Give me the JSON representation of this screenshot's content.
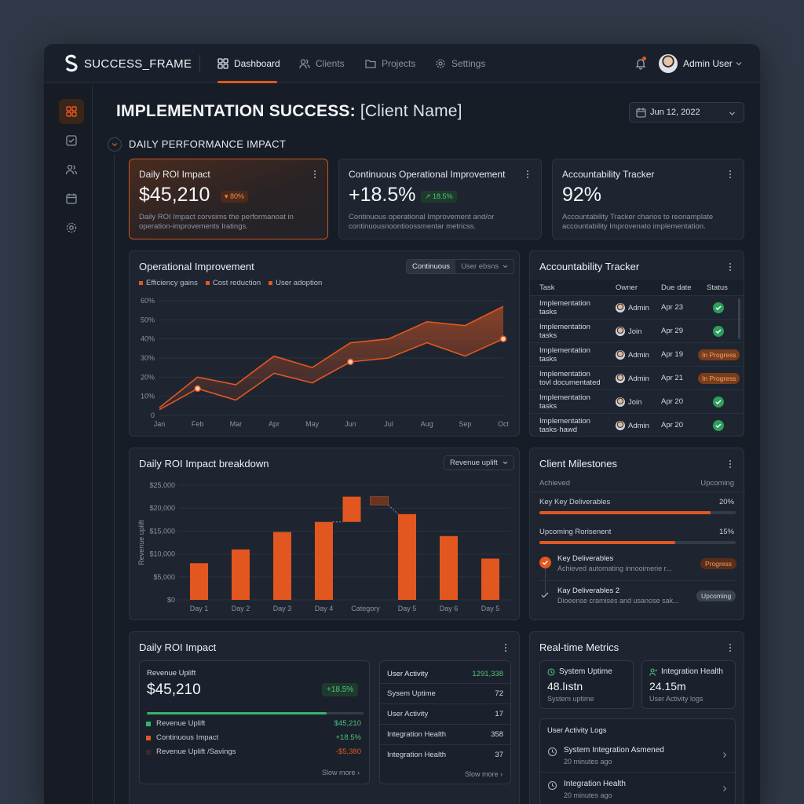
{
  "app": {
    "name": "SUCCESS_FRAME"
  },
  "nav": {
    "dashboard": "Dashboard",
    "clients": "Clients",
    "projects": "Projects",
    "settings": "Settings"
  },
  "user": {
    "name": "Admin User"
  },
  "page": {
    "title_bold": "IMPLEMENTATION SUCCESS:",
    "title_rest": "[Client Name]",
    "date": "Jun 12, 2022"
  },
  "section": {
    "title": "DAILY PERFORMANCE IMPACT"
  },
  "kpis": [
    {
      "label": "Daily ROI Impact",
      "value": "$45,210",
      "badge": "▾ 80%",
      "desc": "Daily ROI Impact corvsims the performanoat in operation-improvements Iratings."
    },
    {
      "label": "Continuous Operational Improvement",
      "value": "+18.5%",
      "badge": "↗ 18.5%",
      "desc": "Continuous operational Improvement and/or continuousnoontioossmentar metricss."
    },
    {
      "label": "Accountability Tracker",
      "value": "92%",
      "desc": "Accountability Tracker charios to reonamplate accountability Improvenato implementation."
    }
  ],
  "op_chart": {
    "title": "Operational Improvement",
    "toggle": [
      "Continuous",
      "User ebsns"
    ],
    "legend": [
      "Efficiency gains",
      "Cost reduction",
      "User adoption"
    ],
    "chart_data": {
      "type": "area",
      "categories": [
        "Jan",
        "Feb",
        "Mar",
        "Apr",
        "May",
        "Jun",
        "Jul",
        "Aug",
        "Sep",
        "Oct"
      ],
      "y_ticks": [
        "60%",
        "50%",
        "40%",
        "30%",
        "20%",
        "10%",
        "0"
      ],
      "ylim": [
        0,
        60
      ],
      "series": [
        {
          "name": "Efficiency gains",
          "values": [
            4,
            20,
            16,
            31,
            25,
            38,
            40,
            49,
            47,
            57
          ]
        },
        {
          "name": "Cost reduction",
          "values": [
            3,
            14,
            8,
            22,
            17,
            28,
            30,
            38,
            31,
            40
          ]
        }
      ]
    }
  },
  "tracker": {
    "title": "Accountability Tracker",
    "headers": [
      "Task",
      "Owner",
      "Due date",
      "Status"
    ],
    "rows": [
      {
        "task": "Implementation tasks",
        "owner": "Admin",
        "due": "Apr 23",
        "status": "done"
      },
      {
        "task": "Implementation tasks",
        "owner": "Join",
        "due": "Apr 29",
        "status": "done"
      },
      {
        "task": "Implementation tasks",
        "owner": "Admin",
        "due": "Apr 19",
        "status": "In Progress"
      },
      {
        "task": "Implementation tovl documentated",
        "owner": "Admin",
        "due": "Apr 21",
        "status": "In Progress"
      },
      {
        "task": "Implementation tasks",
        "owner": "Join",
        "due": "Apr 20",
        "status": "done"
      },
      {
        "task": "Implementation tasks·hawd",
        "owner": "Admin",
        "due": "Apr 20",
        "status": "done"
      }
    ]
  },
  "roi_chart": {
    "title": "Daily ROI Impact breakdown",
    "dropdown": "Revenue uplift",
    "ylabel": "Revenue uplift",
    "chart_data": {
      "type": "bar",
      "categories": [
        "Day 1",
        "Day 2",
        "Day 3",
        "Day 4",
        "Category",
        "Day 5",
        "Day 6",
        "Day 5"
      ],
      "values": [
        8000,
        11000,
        14800,
        17000,
        null,
        18700,
        13900,
        9000
      ],
      "floating": [
        {
          "category": "Category",
          "segments": [
            [
              17000,
              22500
            ],
            [
              18700,
              22500
            ]
          ]
        }
      ],
      "y_ticks": [
        "$25,000",
        "$20,000",
        "$15,000",
        "$10,000",
        "$5,000",
        "$0"
      ],
      "ylim": [
        0,
        25000
      ]
    }
  },
  "milestones": {
    "title": "Client Milestones",
    "achieved": "Achieved",
    "upcoming": "Upcoming",
    "bars": [
      {
        "label": "Key Key Deliverables",
        "pct": "20%",
        "fill": 0.87
      },
      {
        "label": "Upcoming Rorisenent",
        "pct": "15%",
        "fill": 0.69
      }
    ],
    "items": [
      {
        "title": "Key Deliverables",
        "sub": "Achieved automating innooimerie r...",
        "tag": "Progress"
      },
      {
        "title": "Kay Deliverables 2",
        "sub": "Dioeense cramises and usanose sak...",
        "tag": "Upcoming"
      }
    ]
  },
  "roi_panel": {
    "title": "Daily ROI Impact",
    "rev_label": "Revenue Uplift",
    "rev_value": "$45,210",
    "rev_badge": "+18.5%",
    "progress": 0.83,
    "lines": [
      {
        "label": "Revenue Uplift",
        "value": "$45,210",
        "color": "#37b36b"
      },
      {
        "label": "Continuous Impact",
        "value": "+18.5%",
        "color": "#e2571f"
      },
      {
        "label": "Revenue Uplift /Savings",
        "value": "-$5,380",
        "color": "#3a2b27"
      }
    ],
    "more": "Slow more",
    "activity": {
      "title": "User Activity",
      "title_value": "1291,338",
      "rows": [
        {
          "k": "Sysem Uptime",
          "v": "72"
        },
        {
          "k": "User Activity",
          "v": "17"
        },
        {
          "k": "Integration Health",
          "v": "358"
        },
        {
          "k": "Integration Health",
          "v": "37"
        }
      ],
      "more": "Slow more"
    }
  },
  "realtime": {
    "title": "Real-time Metrics",
    "tiles": [
      {
        "head": "System Uptime",
        "value": "48.lıstn",
        "sub": "System uptime"
      },
      {
        "head": "Integration Health",
        "value": "24.15m",
        "sub": "User Activity logs"
      }
    ],
    "logs_title": "User Activity Logs",
    "logs": [
      {
        "name": "System Integration Asmened",
        "when": "20 minutes ago"
      },
      {
        "name": "Integration Health",
        "when": "20 minutes ago"
      }
    ]
  }
}
